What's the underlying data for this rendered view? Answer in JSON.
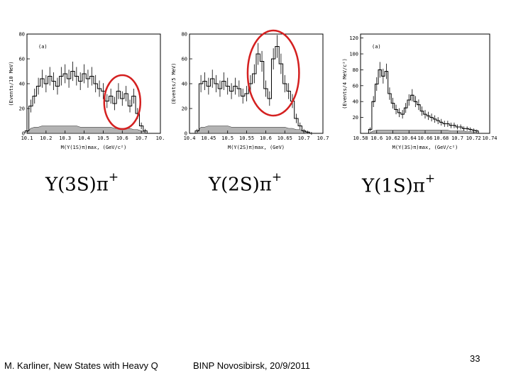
{
  "chart_data": [
    {
      "type": "line",
      "panel_label": "(a)",
      "ylabel": "(Events/10 MeV)",
      "xlabel": "M(Υ(1S)π)max, (GeV/c²)",
      "x_ticks": [
        "10.1",
        "10.2",
        "10.3",
        "10.4",
        "10.5",
        "10.6",
        "10.7",
        "10."
      ],
      "y_ticks": [
        "0",
        "20",
        "40",
        "60",
        "80"
      ],
      "xlim": [
        10.1,
        10.8
      ],
      "ylim": [
        0,
        80
      ],
      "x": [
        10.1,
        10.12,
        10.14,
        10.16,
        10.18,
        10.2,
        10.22,
        10.24,
        10.26,
        10.28,
        10.3,
        10.32,
        10.34,
        10.36,
        10.38,
        10.4,
        10.42,
        10.44,
        10.46,
        10.48,
        10.5,
        10.52,
        10.54,
        10.56,
        10.58,
        10.6,
        10.62,
        10.64,
        10.66,
        10.68,
        10.7,
        10.72
      ],
      "y": [
        2,
        22,
        30,
        38,
        44,
        40,
        46,
        42,
        38,
        46,
        48,
        44,
        50,
        46,
        42,
        48,
        44,
        46,
        40,
        36,
        34,
        26,
        30,
        24,
        34,
        28,
        32,
        22,
        30,
        16,
        6,
        2
      ],
      "background": [
        1,
        4,
        5,
        5,
        6,
        6,
        6,
        6,
        6,
        6,
        6,
        6,
        6,
        6,
        5,
        5,
        5,
        5,
        5,
        5,
        5,
        5,
        5,
        4,
        4,
        4,
        4,
        4,
        3,
        3,
        2,
        1
      ],
      "highlight": {
        "x_center": 10.6,
        "x_halfwidth": 0.08
      },
      "highlight_color": "#d42020"
    },
    {
      "type": "line",
      "panel_label": "",
      "ylabel": "(Events/5 MeV)",
      "xlabel": "M(Υ(2S)π)max, (GeV)",
      "x_ticks": [
        "10.4",
        "10.45",
        "10.5",
        "10.55",
        "10.6",
        "10.65",
        "10.7",
        "10.7"
      ],
      "y_ticks": [
        "0",
        "20",
        "40",
        "60",
        "80"
      ],
      "xlim": [
        10.4,
        10.75
      ],
      "ylim": [
        0,
        80
      ],
      "x": [
        10.42,
        10.43,
        10.44,
        10.45,
        10.46,
        10.47,
        10.48,
        10.49,
        10.5,
        10.51,
        10.52,
        10.53,
        10.54,
        10.55,
        10.56,
        10.57,
        10.58,
        10.59,
        10.6,
        10.61,
        10.62,
        10.63,
        10.64,
        10.65,
        10.66,
        10.67,
        10.68,
        10.69,
        10.7,
        10.71,
        10.72
      ],
      "y": [
        2,
        40,
        42,
        38,
        44,
        40,
        36,
        42,
        38,
        34,
        38,
        36,
        30,
        32,
        40,
        48,
        64,
        58,
        36,
        28,
        60,
        70,
        56,
        40,
        34,
        26,
        12,
        6,
        2,
        1,
        0
      ],
      "background": [
        1,
        5,
        5,
        6,
        6,
        6,
        6,
        6,
        6,
        5,
        5,
        5,
        5,
        5,
        5,
        5,
        5,
        5,
        5,
        5,
        5,
        5,
        5,
        5,
        4,
        4,
        3,
        3,
        2,
        1,
        0
      ],
      "highlight": {
        "x_center": 10.62,
        "x_halfwidth": 0.06
      },
      "highlight_color": "#d42020"
    },
    {
      "type": "line",
      "panel_label": "(a)",
      "ylabel": "(Events/4 MeV/c²)",
      "xlabel": "M(Υ(3S)π)max, (GeV/c²)",
      "x_ticks": [
        "10.58",
        "10.6",
        "10.62",
        "10.64",
        "10.66",
        "10.68",
        "10.7",
        "10.72",
        "10.74"
      ],
      "y_ticks": [
        "20",
        "40",
        "60",
        "80",
        "100",
        "120"
      ],
      "xlim": [
        10.58,
        10.74
      ],
      "ylim": [
        0,
        125
      ],
      "x": [
        10.592,
        10.596,
        10.6,
        10.604,
        10.608,
        10.612,
        10.616,
        10.62,
        10.624,
        10.628,
        10.632,
        10.636,
        10.64,
        10.644,
        10.648,
        10.652,
        10.656,
        10.66,
        10.664,
        10.668,
        10.672,
        10.676,
        10.68,
        10.684,
        10.688,
        10.692,
        10.696,
        10.7,
        10.704,
        10.708,
        10.712,
        10.716,
        10.72,
        10.724
      ],
      "y": [
        5,
        40,
        62,
        80,
        72,
        78,
        50,
        38,
        30,
        26,
        24,
        32,
        42,
        48,
        40,
        36,
        28,
        24,
        22,
        20,
        18,
        16,
        14,
        12,
        12,
        10,
        10,
        8,
        8,
        6,
        6,
        5,
        4,
        3
      ],
      "background": [
        1,
        3,
        4,
        4,
        4,
        4,
        4,
        4,
        4,
        4,
        4,
        4,
        4,
        4,
        4,
        4,
        4,
        4,
        4,
        4,
        4,
        4,
        4,
        4,
        4,
        3,
        3,
        3,
        3,
        3,
        2,
        2,
        2,
        1
      ]
    }
  ],
  "formulas": [
    {
      "base": "Υ(3S)π",
      "sup": "+"
    },
    {
      "base": "Υ(2S)π",
      "sup": "+"
    },
    {
      "base": "Υ(1S)π",
      "sup": "+"
    }
  ],
  "footer": {
    "author": "M. Karliner, New States with Heavy Q",
    "venue": "BINP Novosibirsk, 20/9/2011",
    "page_number": "33"
  }
}
